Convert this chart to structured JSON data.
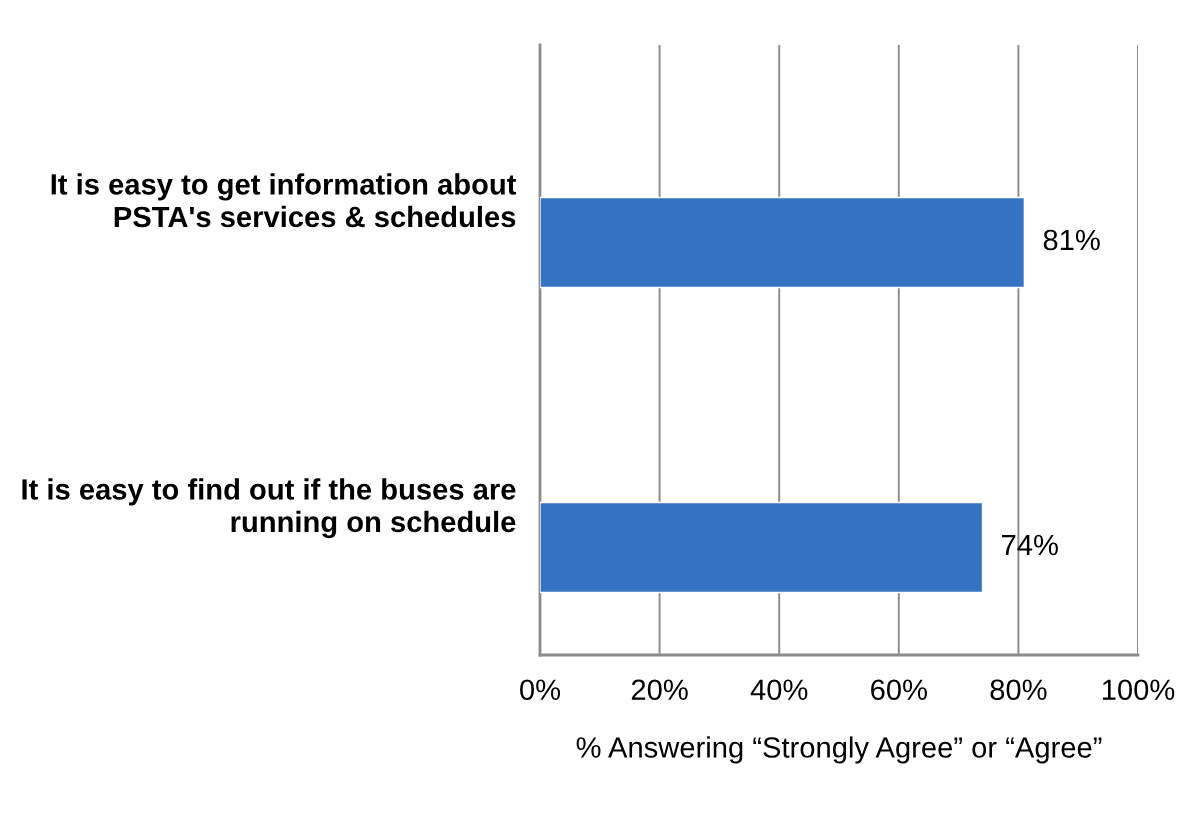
{
  "chart_data": {
    "type": "bar",
    "orientation": "horizontal",
    "categories": [
      "It is easy to get information about\nPSTA's services & schedules",
      "It is easy to find out if the buses are\nrunning on schedule"
    ],
    "values": [
      81,
      74
    ],
    "color": "#3473c2",
    "value_labels": [
      "81%",
      "74%"
    ],
    "xlabel": "% Answering “Strongly Agree” or “Agree”",
    "xlim": [
      0,
      100
    ],
    "xticks": [
      {
        "value": 0,
        "label": "0%"
      },
      {
        "value": 20,
        "label": "20%"
      },
      {
        "value": 40,
        "label": "40%"
      },
      {
        "value": 60,
        "label": "60%"
      },
      {
        "value": 80,
        "label": "80%"
      },
      {
        "value": 100,
        "label": "100%"
      }
    ],
    "grid": "x"
  }
}
